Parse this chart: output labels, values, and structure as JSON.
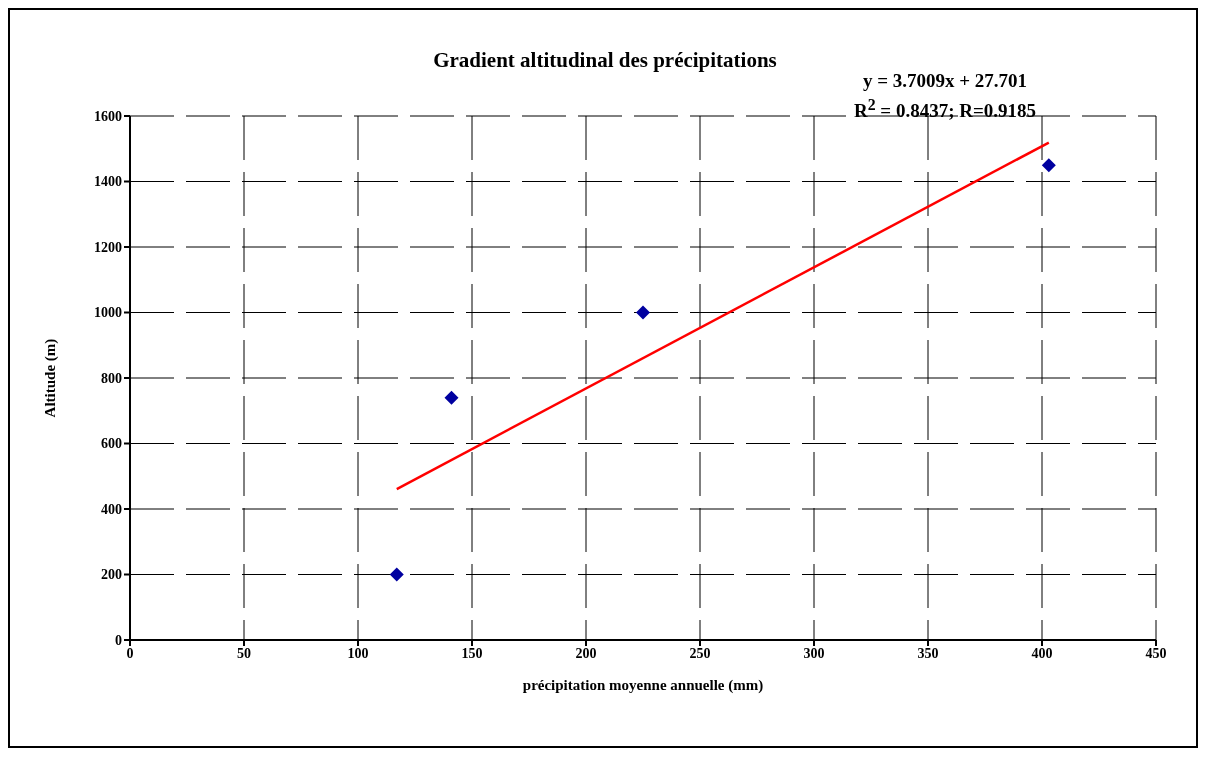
{
  "chart_data": {
    "type": "scatter",
    "title": "Gradient altitudinal des  précipitations",
    "xlabel": "précipitation  moyenne  annuelle (mm)",
    "ylabel": "Altitude (m)",
    "xlim": [
      0,
      450
    ],
    "xticks": [
      0,
      50,
      100,
      150,
      200,
      250,
      300,
      350,
      400,
      450
    ],
    "ylim": [
      0,
      1600
    ],
    "yticks": [
      0,
      200,
      400,
      600,
      800,
      1000,
      1200,
      1400,
      1600
    ],
    "grid": true,
    "marker": "diamond",
    "series": [
      {
        "color": "#0000a0",
        "x": [
          117,
          141,
          225,
          403
        ],
        "values": [
          200,
          740,
          1000,
          1450
        ]
      },
      {
        "type": "line",
        "color": "#ff0000",
        "marker": "none",
        "line_style": "solid",
        "x": [
          117,
          403
        ],
        "values": [
          461,
          1519
        ]
      }
    ],
    "annotations": [
      "y = 3.7009x + 27.701",
      "R$^{2}$ = 0.8437; R=0.9185"
    ]
  }
}
